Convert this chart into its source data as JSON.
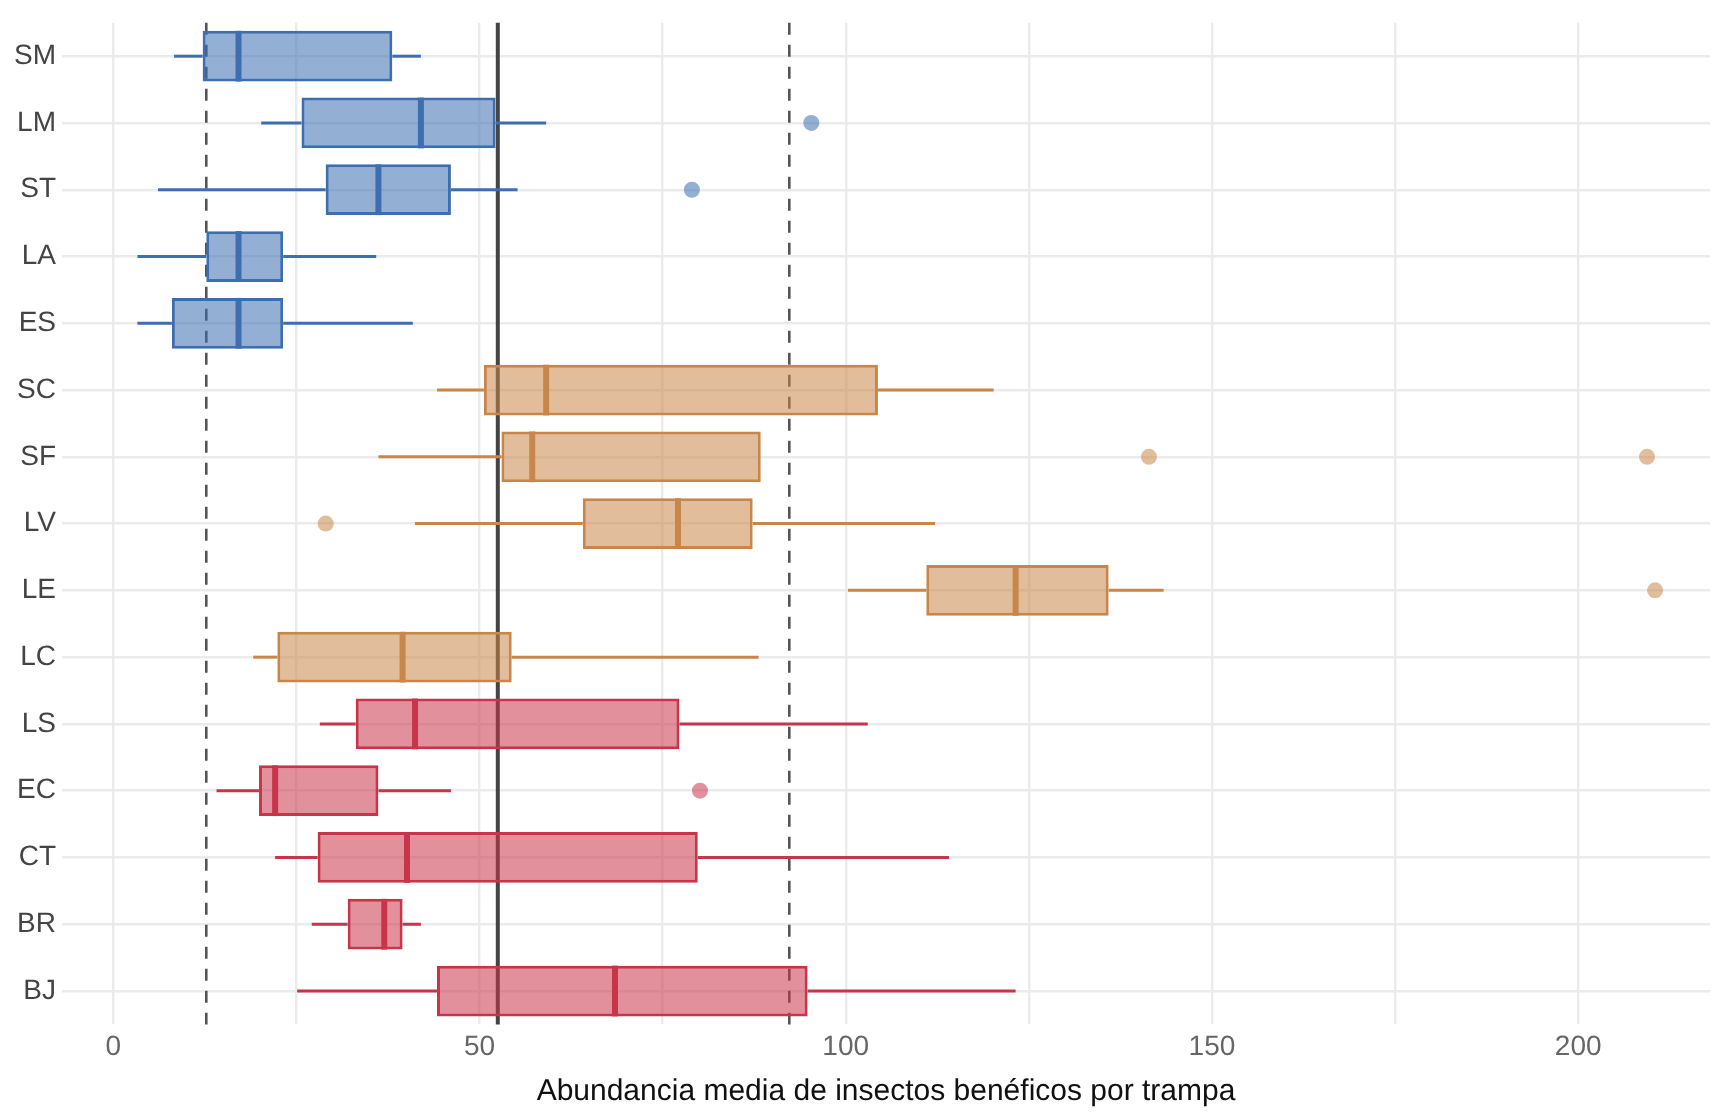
{
  "chart_data": {
    "type": "box",
    "orientation": "horizontal",
    "xlabel": "Abundancia media de insectos benéficos por trampa",
    "categories": [
      "SM",
      "LM",
      "ST",
      "LA",
      "ES",
      "SC",
      "SF",
      "LV",
      "LE",
      "LC",
      "LS",
      "EC",
      "CT",
      "BR",
      "BJ"
    ],
    "xlim": [
      -7,
      218
    ],
    "xticks": [
      0,
      {
        "value": 25,
        "label": null
      },
      50,
      {
        "value": 75,
        "label": null
      },
      100,
      {
        "value": 125,
        "label": null
      },
      150,
      {
        "value": 175,
        "label": null
      },
      200
    ],
    "grid": true,
    "legend": false,
    "ref_lines": [
      {
        "axis": "x",
        "value": 12.7,
        "color": "#555555",
        "line_style": "dashed"
      },
      {
        "axis": "x",
        "value": 52.5,
        "color": "#444444",
        "line_style": "solid"
      },
      {
        "axis": "x",
        "value": 92.3,
        "color": "#555555",
        "line_style": "dashed"
      }
    ],
    "series": [
      {
        "color": "#3d6eb0",
        "boxes": [
          {
            "low": 8.3,
            "q1": 12.2,
            "median": 17.1,
            "q3": 38.1,
            "high": 42
          },
          {
            "low": 20.2,
            "q1": 25.7,
            "median": 42,
            "q3": 52.2,
            "high": 59.1,
            "outliers": [
              95.3
            ]
          },
          {
            "low": 6.1,
            "q1": 29,
            "median": 36.2,
            "q3": 46.1,
            "high": 55.2,
            "outliers": [
              79
            ]
          },
          {
            "low": 3.3,
            "q1": 12.7,
            "median": 17.1,
            "q3": 23.2,
            "high": 35.9
          },
          {
            "low": 3.3,
            "q1": 8,
            "median": 17.1,
            "q3": 23.2,
            "high": 40.9
          },
          null,
          null,
          null,
          null,
          null,
          null,
          null,
          null,
          null,
          null
        ]
      },
      {
        "color": "#c8864a",
        "boxes": [
          null,
          null,
          null,
          null,
          null,
          {
            "low": 44.2,
            "q1": 50.6,
            "median": 59.1,
            "q3": 104.4,
            "high": 120.2
          },
          {
            "low": 36.2,
            "q1": 53,
            "median": 57.2,
            "q3": 88.4,
            "high": 88.4,
            "outliers": [
              141.4,
              209.4
            ]
          },
          {
            "low": 41.2,
            "q1": 64.1,
            "median": 77.1,
            "q3": 87.3,
            "high": 112.2,
            "outliers": [
              29
            ]
          },
          {
            "low": 100.3,
            "q1": 111,
            "median": 123.2,
            "q3": 135.9,
            "high": 143.4,
            "outliers": [
              210.5
            ]
          },
          {
            "low": 19.1,
            "q1": 22.4,
            "median": 39.5,
            "q3": 54.4,
            "high": 88.1
          },
          null,
          null,
          null,
          null,
          null
        ]
      },
      {
        "color": "#c8344a",
        "boxes": [
          null,
          null,
          null,
          null,
          null,
          null,
          null,
          null,
          null,
          null,
          {
            "low": 28.2,
            "q1": 33.1,
            "median": 41.2,
            "q3": 77.3,
            "high": 103
          },
          {
            "low": 14.1,
            "q1": 19.9,
            "median": 22.1,
            "q3": 36.2,
            "high": 46.1,
            "outliers": [
              80.1
            ]
          },
          {
            "low": 22.1,
            "q1": 27.9,
            "median": 40.1,
            "q3": 79.8,
            "high": 114.1
          },
          {
            "low": 27.1,
            "q1": 32,
            "median": 37,
            "q3": 39.5,
            "high": 42
          },
          {
            "low": 25.1,
            "q1": 44.2,
            "median": 68.5,
            "q3": 94.8,
            "high": 123.2
          }
        ]
      }
    ]
  }
}
